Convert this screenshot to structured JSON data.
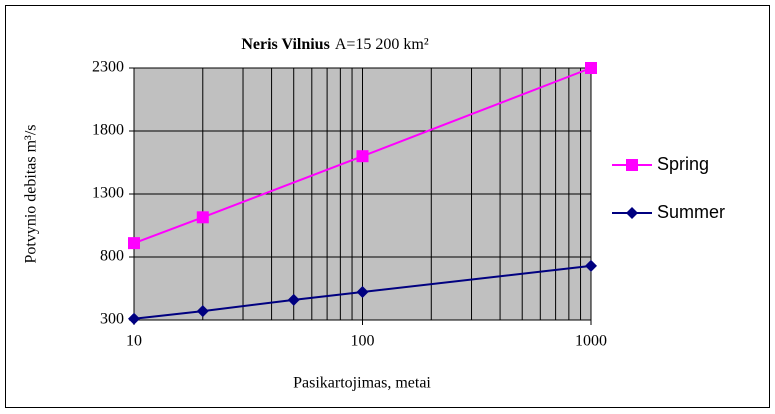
{
  "chart_data": {
    "type": "line",
    "title": "Neris Vilnius",
    "subtitle": "A=15 200 km²",
    "x_label": "Pasikartojimas, metai",
    "y_label": "Potvynio debitas m³/s",
    "xscale": "log",
    "xlim": [
      10,
      1000
    ],
    "xticks": [
      10,
      100,
      1000
    ],
    "xminorticks": [
      20,
      30,
      40,
      50,
      60,
      70,
      80,
      90,
      200,
      300,
      400,
      500,
      600,
      700,
      800,
      900
    ],
    "ylim": [
      300,
      2300
    ],
    "yticks": [
      300,
      800,
      1300,
      1800,
      2300
    ],
    "grid": true,
    "plot_background": "#c0c0c0",
    "legend": "right",
    "series": [
      {
        "name": "Spring",
        "color": "#ff00ff",
        "marker": "square",
        "x": [
          10,
          20,
          100,
          1000
        ],
        "values": [
          910,
          1115,
          1600,
          2300
        ]
      },
      {
        "name": "Summer",
        "color": "#000080",
        "marker": "diamond",
        "x": [
          10,
          20,
          50,
          100,
          1000
        ],
        "values": [
          310,
          370,
          460,
          522,
          730
        ]
      }
    ]
  }
}
